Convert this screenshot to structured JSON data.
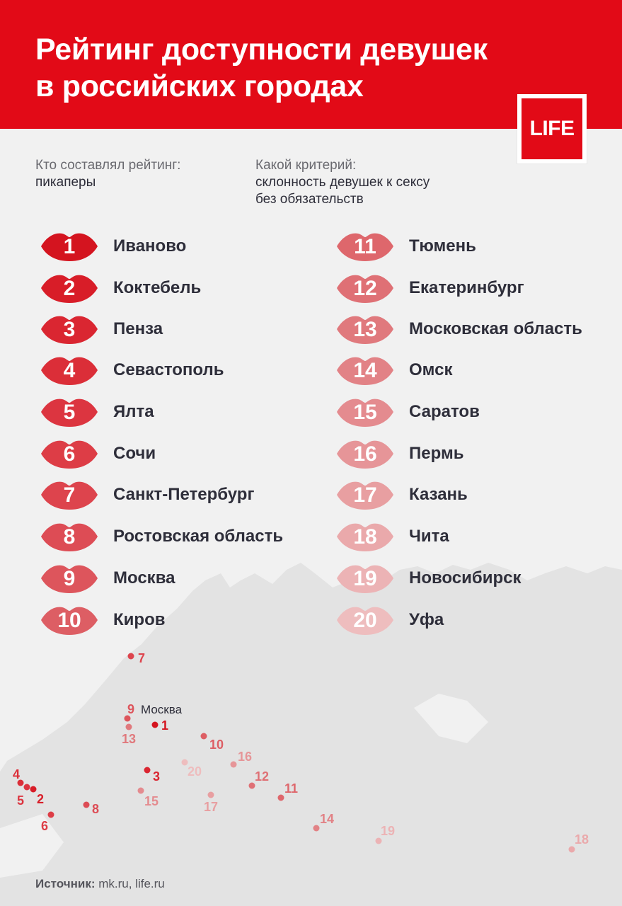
{
  "title_line1": "Рейтинг доступности девушек",
  "title_line2": "в российских городах",
  "logo": "LIFE",
  "who_label": "Кто составлял рейтинг:",
  "who_value": "пикаперы",
  "criteria_label": "Какой критерий:",
  "criteria_value_line1": "склонность девушек к сексу",
  "criteria_value_line2": "без обязательств",
  "ranking": [
    {
      "rank": "1",
      "city": "Иваново",
      "color": "#d4141f"
    },
    {
      "rank": "2",
      "city": "Коктебель",
      "color": "#d81d28"
    },
    {
      "rank": "3",
      "city": "Пенза",
      "color": "#da2631"
    },
    {
      "rank": "4",
      "city": "Севастополь",
      "color": "#db2e38"
    },
    {
      "rank": "5",
      "city": "Ялта",
      "color": "#dc3540"
    },
    {
      "rank": "6",
      "city": "Сочи",
      "color": "#dd3d46"
    },
    {
      "rank": "7",
      "city": "Санкт-Петербург",
      "color": "#dd444d"
    },
    {
      "rank": "8",
      "city": "Ростовская область",
      "color": "#dd4c55"
    },
    {
      "rank": "9",
      "city": "Москва",
      "color": "#dd555c"
    },
    {
      "rank": "10",
      "city": "Киров",
      "color": "#dd5e64"
    },
    {
      "rank": "11",
      "city": "Тюмень",
      "color": "#de676c"
    },
    {
      "rank": "12",
      "city": "Екатеринбург",
      "color": "#df7075"
    },
    {
      "rank": "13",
      "city": "Московская область",
      "color": "#e0797d"
    },
    {
      "rank": "14",
      "city": "Омск",
      "color": "#e28286"
    },
    {
      "rank": "15",
      "city": "Саратов",
      "color": "#e48b8f"
    },
    {
      "rank": "16",
      "city": "Пермь",
      "color": "#e69598"
    },
    {
      "rank": "17",
      "city": "Казань",
      "color": "#e89fa1"
    },
    {
      "rank": "18",
      "city": "Чита",
      "color": "#eaa9ab"
    },
    {
      "rank": "19",
      "city": "Новосибирск",
      "color": "#ecb3b5"
    },
    {
      "rank": "20",
      "city": "Уфа",
      "color": "#eebdbe"
    }
  ],
  "map_moscow_label": "Москва",
  "source_label": "Источник:",
  "source_value": "mk.ru, life.ru",
  "colors": {
    "brand_red": "#e20a17",
    "background": "#f1f1f1",
    "map_land": "#e3e3e3"
  }
}
